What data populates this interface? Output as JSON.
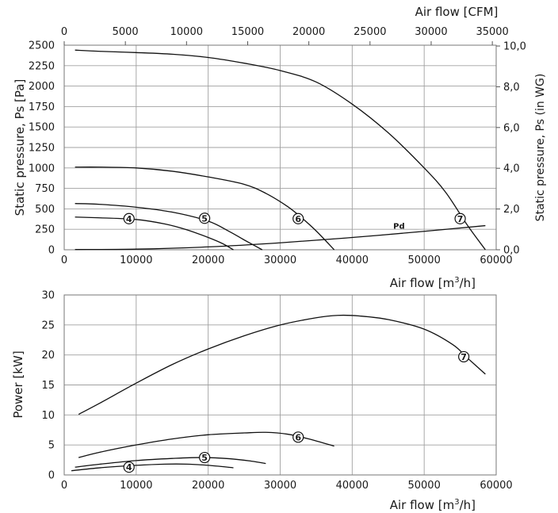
{
  "chart_data": [
    {
      "type": "line",
      "title": "",
      "xlabel": "Air flow [m³/h]",
      "ylabel": "Static pressure, Ps [Pa]",
      "xlim": [
        0,
        60000
      ],
      "ylim": [
        0,
        2500
      ],
      "x_ticks": [
        "0",
        "10000",
        "20000",
        "30000",
        "40000",
        "50000",
        "60000"
      ],
      "y_ticks": [
        "0",
        "250",
        "500",
        "750",
        "1000",
        "1250",
        "1500",
        "1750",
        "2000",
        "2250",
        "2500"
      ],
      "x2label": "Air flow [CFM]",
      "x2lim": [
        0,
        35315
      ],
      "x2_ticks": [
        "0",
        "5000",
        "10000",
        "15000",
        "20000",
        "25000",
        "30000",
        "35000"
      ],
      "y2label": "Static pressure, Ps (in WG)",
      "y2lim": [
        0,
        10.04
      ],
      "y2_ticks": [
        "0,0",
        "2,0",
        "4,0",
        "6,0",
        "8,0",
        "10,0"
      ],
      "grid": true,
      "series": [
        {
          "name": "7",
          "x": [
            1500,
            5000,
            10000,
            15000,
            20000,
            25000,
            30000,
            35000,
            40000,
            45000,
            50000,
            53000,
            56000,
            58500
          ],
          "y": [
            2440,
            2425,
            2410,
            2390,
            2350,
            2280,
            2190,
            2050,
            1780,
            1430,
            1000,
            700,
            300,
            0
          ]
        },
        {
          "name": "6",
          "x": [
            1500,
            5000,
            10000,
            15000,
            20000,
            25000,
            28000,
            31000,
            33000,
            35000,
            37500
          ],
          "y": [
            1010,
            1010,
            1000,
            960,
            890,
            800,
            690,
            530,
            390,
            230,
            0
          ]
        },
        {
          "name": "5",
          "x": [
            1500,
            5000,
            10000,
            15000,
            20000,
            23000,
            25000,
            27500
          ],
          "y": [
            565,
            555,
            520,
            460,
            350,
            220,
            120,
            0
          ]
        },
        {
          "name": "4",
          "x": [
            1500,
            5000,
            10000,
            14000,
            17000,
            20000,
            22000,
            23500
          ],
          "y": [
            400,
            390,
            370,
            315,
            245,
            150,
            75,
            0
          ]
        },
        {
          "name": "Pd",
          "x": [
            1500,
            10000,
            20000,
            30000,
            40000,
            50000,
            58500
          ],
          "y": [
            3,
            8,
            35,
            85,
            150,
            225,
            295
          ]
        }
      ],
      "markers": [
        {
          "label": "4",
          "x": 9000,
          "y": 380
        },
        {
          "label": "5",
          "x": 19500,
          "y": 385
        },
        {
          "label": "6",
          "x": 32500,
          "y": 380
        },
        {
          "label": "7",
          "x": 55000,
          "y": 380
        }
      ],
      "annotations": [
        {
          "text": "Pd",
          "x": 46500,
          "y": 255
        }
      ]
    },
    {
      "type": "line",
      "title": "",
      "xlabel": "Air flow [m³/h]",
      "ylabel": "Power [kW]",
      "xlim": [
        0,
        60000
      ],
      "ylim": [
        0,
        30
      ],
      "x_ticks": [
        "0",
        "10000",
        "20000",
        "30000",
        "40000",
        "50000",
        "60000"
      ],
      "y_ticks": [
        "0",
        "5",
        "10",
        "15",
        "20",
        "25",
        "30"
      ],
      "grid": true,
      "series": [
        {
          "name": "7",
          "x": [
            2000,
            5000,
            10000,
            15000,
            20000,
            25000,
            30000,
            35000,
            38000,
            41000,
            45000,
            50000,
            54000,
            56000,
            58500
          ],
          "y": [
            10.1,
            12.0,
            15.3,
            18.4,
            21.0,
            23.2,
            25.0,
            26.2,
            26.6,
            26.5,
            25.9,
            24.3,
            21.7,
            19.5,
            16.8
          ]
        },
        {
          "name": "6",
          "x": [
            2000,
            5000,
            10000,
            15000,
            20000,
            25000,
            28000,
            31000,
            34000,
            37500
          ],
          "y": [
            2.9,
            3.8,
            5.0,
            6.0,
            6.7,
            7.0,
            7.1,
            6.8,
            6.0,
            4.8
          ]
        },
        {
          "name": "5",
          "x": [
            1500,
            5000,
            10000,
            15000,
            19000,
            23000,
            26000,
            28000
          ],
          "y": [
            1.3,
            1.8,
            2.4,
            2.75,
            2.9,
            2.7,
            2.3,
            1.9
          ]
        },
        {
          "name": "4",
          "x": [
            1000,
            5000,
            10000,
            14000,
            17000,
            20000,
            23500
          ],
          "y": [
            0.7,
            1.2,
            1.6,
            1.8,
            1.8,
            1.6,
            1.2
          ]
        }
      ],
      "markers": [
        {
          "label": "4",
          "x": 9000,
          "y": 1.3
        },
        {
          "label": "5",
          "x": 19500,
          "y": 2.9
        },
        {
          "label": "6",
          "x": 32500,
          "y": 6.3
        },
        {
          "label": "7",
          "x": 55500,
          "y": 19.7
        }
      ]
    }
  ]
}
